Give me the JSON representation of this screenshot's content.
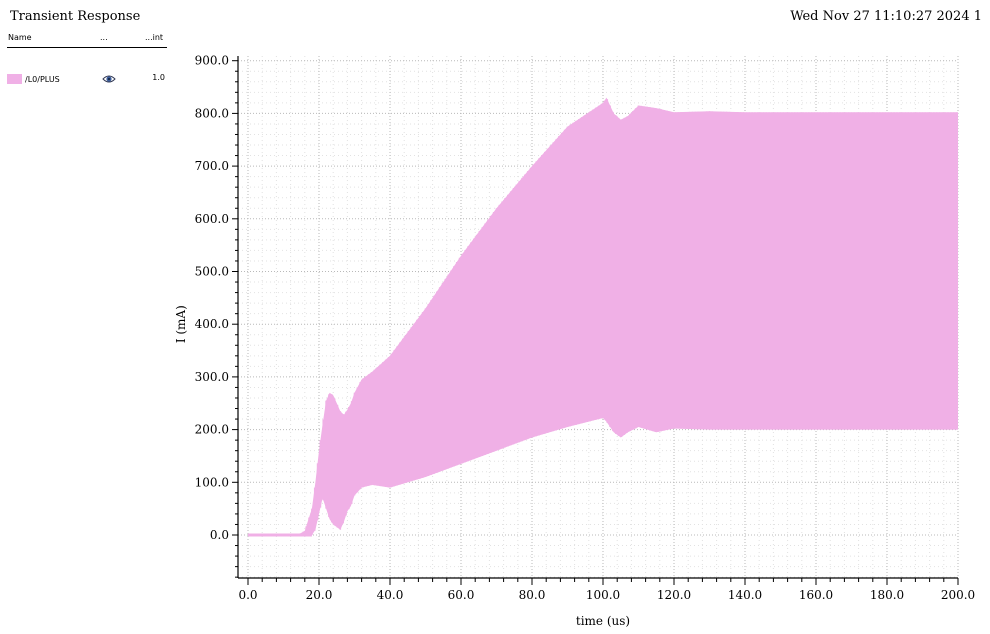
{
  "header": {
    "title": "Transient Response",
    "datestamp": "Wed Nov 27 11:10:27 2024  1"
  },
  "legend": {
    "columns": [
      "Name",
      "...",
      "...int"
    ],
    "items": [
      {
        "name": "/L0/PLUS",
        "value": "1.0",
        "color": "#f0b0e6",
        "icon": "eye-icon"
      }
    ]
  },
  "chart_data": {
    "type": "area",
    "title": "",
    "xlabel": "time (us)",
    "ylabel": "I (mA)",
    "xlim": [
      0,
      200
    ],
    "ylim": [
      -80,
      910
    ],
    "x_ticks": [
      0,
      20,
      40,
      60,
      80,
      100,
      120,
      140,
      160,
      180,
      200
    ],
    "y_ticks": [
      0,
      100,
      200,
      300,
      400,
      500,
      600,
      700,
      800,
      900
    ],
    "x_tick_labels": [
      "0.0",
      "20.0",
      "40.0",
      "60.0",
      "80.0",
      "100.0",
      "120.0",
      "140.0",
      "160.0",
      "180.0",
      "200.0"
    ],
    "y_tick_labels": [
      "0.0",
      "100.0",
      "200.0",
      "300.0",
      "400.0",
      "500.0",
      "600.0",
      "700.0",
      "800.0",
      "900.0"
    ],
    "grid": true,
    "series": [
      {
        "name": "/L0/PLUS",
        "color": "#f0b0e6",
        "x": [
          0,
          14,
          16,
          18,
          19,
          20,
          21,
          22,
          23,
          24,
          25,
          26,
          27,
          28,
          29,
          30,
          32,
          35,
          40,
          50,
          60,
          70,
          80,
          90,
          100,
          101,
          103,
          105,
          107,
          110,
          115,
          120,
          130,
          140,
          160,
          180,
          200
        ],
        "upper": [
          0,
          0,
          8,
          50,
          100,
          160,
          210,
          255,
          270,
          265,
          250,
          235,
          228,
          238,
          250,
          270,
          295,
          310,
          340,
          430,
          530,
          620,
          700,
          775,
          820,
          830,
          800,
          788,
          795,
          815,
          810,
          802,
          804,
          802,
          802,
          802,
          802
        ],
        "lower": [
          0,
          0,
          -2,
          0,
          10,
          40,
          70,
          50,
          30,
          20,
          15,
          10,
          25,
          45,
          55,
          75,
          90,
          95,
          90,
          110,
          135,
          160,
          185,
          205,
          222,
          215,
          195,
          185,
          195,
          205,
          195,
          202,
          200,
          200,
          200,
          200,
          200
        ]
      }
    ]
  }
}
